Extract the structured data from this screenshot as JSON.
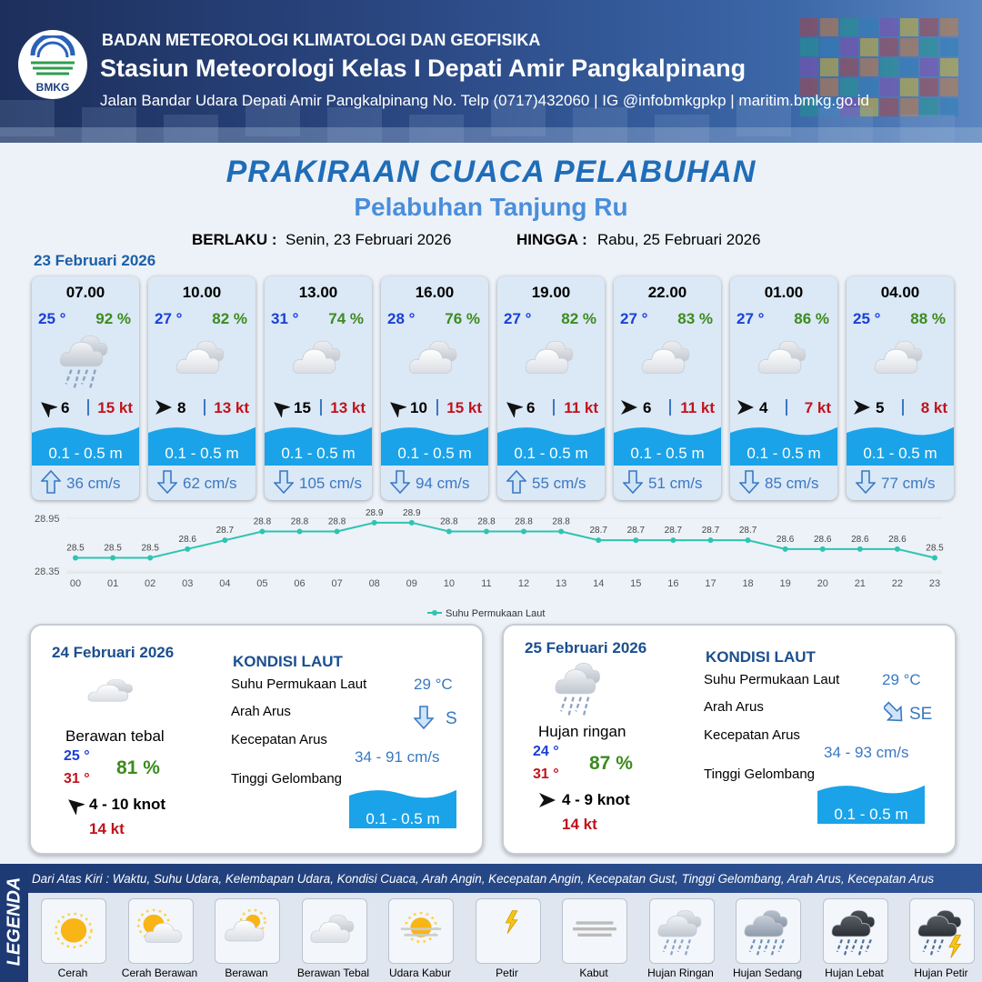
{
  "header": {
    "logo": "BMKG",
    "org": "BADAN METEOROLOGI KLIMATOLOGI DAN GEOFISIKA",
    "station": "Stasiun Meteorologi Kelas I Depati Amir Pangkalpinang",
    "address": "Jalan Bandar Udara Depati Amir Pangkalpinang No. Telp (0717)432060 | IG @infobmkgpkp | maritim.bmkg.go.id"
  },
  "title": "PRAKIRAAN CUACA PELABUHAN",
  "subtitle": "Pelabuhan Tanjung Ru",
  "validity": {
    "from_label": "BERLAKU :",
    "from": "Senin, 23 Februari 2026",
    "to_label": "HINGGA :",
    "to": "Rabu, 25 Februari 2026"
  },
  "day1": {
    "date": "23 Februari 2026",
    "hours": [
      {
        "time": "07.00",
        "temp": "25 °",
        "humidity": "92 %",
        "wind": "6",
        "gust": "15 kt",
        "wave": "0.1 - 0.5 m",
        "current": "36 cm/s"
      },
      {
        "time": "10.00",
        "temp": "27 °",
        "humidity": "82 %",
        "wind": "8",
        "gust": "13 kt",
        "wave": "0.1 - 0.5 m",
        "current": "62 cm/s"
      },
      {
        "time": "13.00",
        "temp": "31 °",
        "humidity": "74 %",
        "wind": "15",
        "gust": "13 kt",
        "wave": "0.1 - 0.5 m",
        "current": "105 cm/s"
      },
      {
        "time": "16.00",
        "temp": "28 °",
        "humidity": "76 %",
        "wind": "10",
        "gust": "15 kt",
        "wave": "0.1 - 0.5 m",
        "current": "94 cm/s"
      },
      {
        "time": "19.00",
        "temp": "27 °",
        "humidity": "82 %",
        "wind": "6",
        "gust": "11 kt",
        "wave": "0.1 - 0.5 m",
        "current": "55 cm/s"
      },
      {
        "time": "22.00",
        "temp": "27 °",
        "humidity": "83 %",
        "wind": "6",
        "gust": "11 kt",
        "wave": "0.1 - 0.5 m",
        "current": "51 cm/s"
      },
      {
        "time": "01.00",
        "temp": "27 °",
        "humidity": "86 %",
        "wind": "4",
        "gust": "7 kt",
        "wave": "0.1 - 0.5 m",
        "current": "85 cm/s"
      },
      {
        "time": "04.00",
        "temp": "25 °",
        "humidity": "88 %",
        "wind": "5",
        "gust": "8 kt",
        "wave": "0.1 - 0.5 m",
        "current": "77 cm/s"
      }
    ]
  },
  "chart_data": {
    "type": "line",
    "x": [
      "00",
      "01",
      "02",
      "03",
      "04",
      "05",
      "06",
      "07",
      "08",
      "09",
      "10",
      "11",
      "12",
      "13",
      "14",
      "15",
      "16",
      "17",
      "18",
      "19",
      "20",
      "21",
      "22",
      "23"
    ],
    "series": [
      {
        "name": "Suhu Permukaan Laut",
        "color": "#2ec4b0",
        "values": [
          28.5,
          28.5,
          28.5,
          28.6,
          28.7,
          28.8,
          28.8,
          28.8,
          28.9,
          28.9,
          28.8,
          28.8,
          28.8,
          28.8,
          28.7,
          28.7,
          28.7,
          28.7,
          28.7,
          28.6,
          28.6,
          28.6,
          28.6,
          28.5
        ]
      }
    ],
    "ylim": [
      28.35,
      28.95
    ],
    "yticks": [
      28.35,
      28.95
    ]
  },
  "days": [
    {
      "date": "24 Februari 2026",
      "condition": "Berawan tebal",
      "temp_min": "25 °",
      "temp_max": "31 °",
      "humidity": "81 %",
      "wind": "4  - 10 knot",
      "gust": "14 kt",
      "sea_title": "KONDISI LAUT",
      "sst_label": "Suhu Permukaan Laut",
      "dir_label": "Arah Arus",
      "speed_label": "Kecepatan Arus",
      "wave_label": "Tinggi Gelombang",
      "sst": "29 °C",
      "current_dir": "S",
      "current_speed": "34  - 91 cm/s",
      "wave": "0.1 - 0.5 m"
    },
    {
      "date": "25 Februari 2026",
      "condition": "Hujan ringan",
      "temp_min": "24 °",
      "temp_max": "31 °",
      "humidity": "87 %",
      "wind": "4  - 9 knot",
      "gust": "14 kt",
      "sea_title": "KONDISI LAUT",
      "sst_label": "Suhu Permukaan Laut",
      "dir_label": "Arah Arus",
      "speed_label": "Kecepatan Arus",
      "wave_label": "Tinggi Gelombang",
      "sst": "29 °C",
      "current_dir": "SE",
      "current_speed": "34  - 93 cm/s",
      "wave": "0.1 - 0.5 m"
    }
  ],
  "legend": {
    "title": "LEGENDA",
    "description": "Dari Atas Kiri : Waktu, Suhu Udara, Kelembapan Udara, Kondisi Cuaca, Arah Angin, Kecepatan Angin, Kecepatan Gust, Tinggi Gelombang, Arah Arus, Kecepatan Arus",
    "items": [
      "Cerah",
      "Cerah Berawan",
      "Berawan",
      "Berawan Tebal",
      "Udara Kabur",
      "Petir",
      "Kabut",
      "Hujan Ringan",
      "Hujan Sedang",
      "Hujan Lebat",
      "Hujan Petir"
    ]
  }
}
